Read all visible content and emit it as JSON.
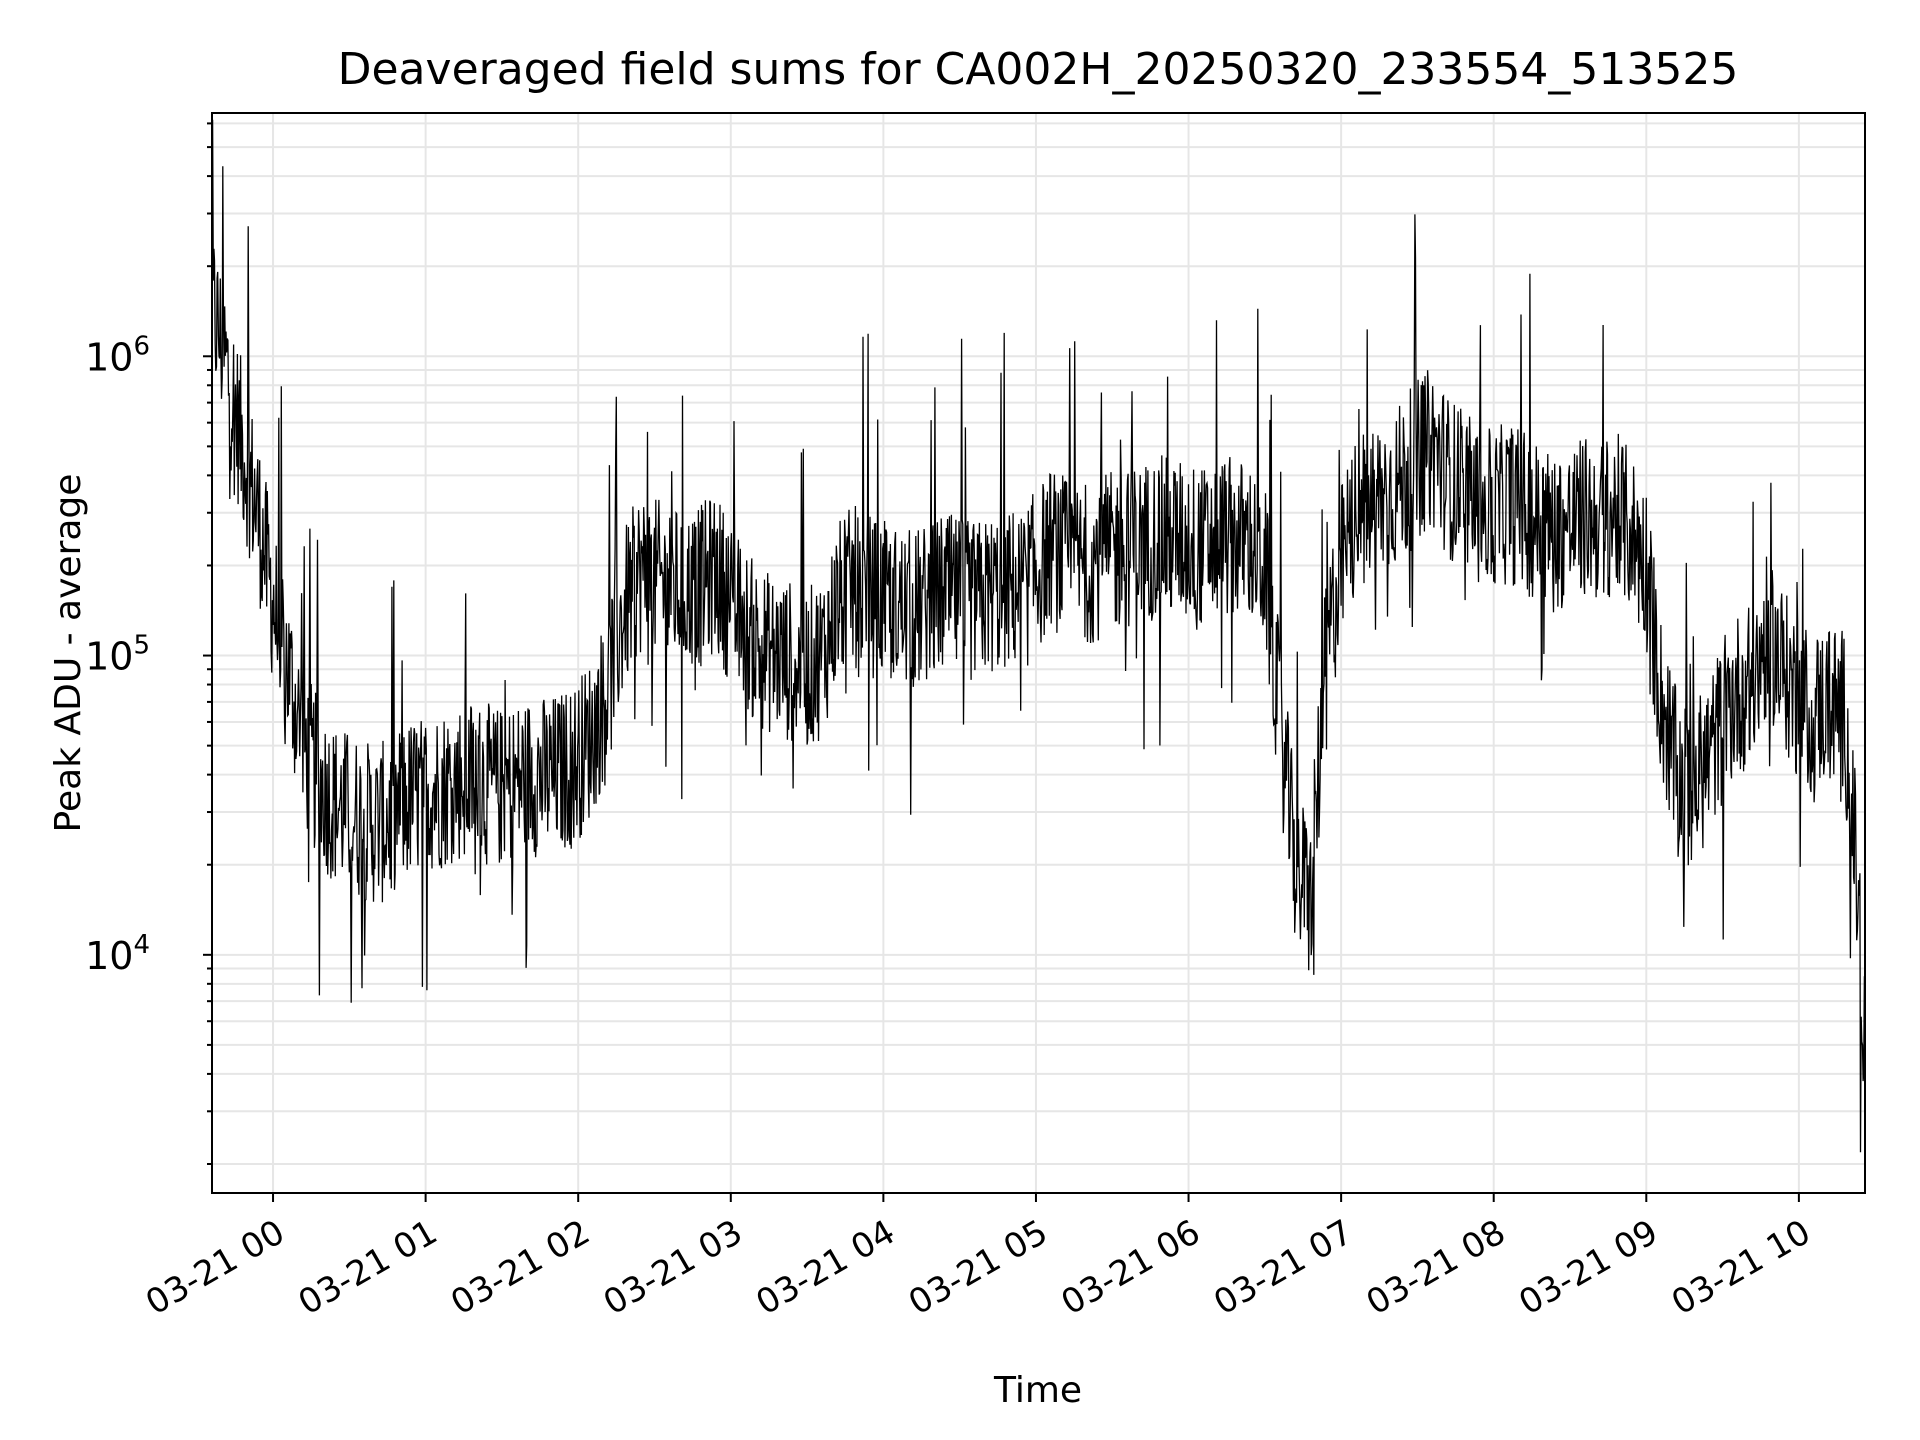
{
  "chart_data": {
    "type": "line",
    "title": "Deaveraged field sums for CA002H_20250320_233554_513525",
    "xlabel": "Time",
    "ylabel": "Peak ADU - average",
    "yscale": "log",
    "xlim": [
      "2025-03-20 23:35:54",
      "2025-03-21 10:26:00"
    ],
    "ylim": [
      1600,
      6500000
    ],
    "grid": true,
    "line_color": "#000000",
    "x_ticks": [
      "03-21 00",
      "03-21 01",
      "03-21 02",
      "03-21 03",
      "03-21 04",
      "03-21 05",
      "03-21 06",
      "03-21 07",
      "03-21 08",
      "03-21 09",
      "03-21 10"
    ],
    "y_ticks": [
      {
        "base": "10",
        "exp": "4",
        "value": 10000
      },
      {
        "base": "10",
        "exp": "5",
        "value": 100000
      },
      {
        "base": "10",
        "exp": "6",
        "value": 1000000
      }
    ],
    "series": [
      {
        "x_unit": "minutes after 03-21 00:00",
        "x": [
          -24,
          -18,
          -12,
          -6,
          0,
          6,
          12,
          18,
          24,
          30,
          36,
          42,
          48,
          54,
          60,
          66,
          72,
          78,
          84,
          90,
          96,
          102,
          108,
          114,
          120,
          126,
          132,
          138,
          144,
          150,
          156,
          162,
          168,
          174,
          180,
          186,
          192,
          198,
          204,
          210,
          216,
          222,
          228,
          234,
          240,
          246,
          252,
          258,
          264,
          270,
          276,
          282,
          288,
          294,
          300,
          306,
          312,
          318,
          324,
          330,
          336,
          342,
          348,
          354,
          360,
          366,
          372,
          378,
          384,
          390,
          396,
          402,
          408,
          414,
          420,
          426,
          432,
          438,
          444,
          450,
          456,
          462,
          468,
          474,
          480,
          486,
          492,
          498,
          504,
          510,
          516,
          522,
          528,
          534,
          540,
          546,
          552,
          558,
          564,
          570,
          576,
          582,
          588,
          594,
          600,
          606,
          612,
          618,
          624,
          626
        ],
        "values": [
          1500000,
          900000,
          500000,
          300000,
          150000,
          90000,
          50000,
          38000,
          32000,
          30000,
          28000,
          27000,
          30000,
          33000,
          35000,
          36000,
          38000,
          39000,
          37000,
          36000,
          38000,
          40000,
          39000,
          41000,
          45000,
          55000,
          80000,
          140000,
          190000,
          180000,
          170000,
          165000,
          170000,
          190000,
          150000,
          120000,
          105000,
          100000,
          95000,
          90000,
          100000,
          150000,
          170000,
          160000,
          150000,
          145000,
          140000,
          150000,
          160000,
          155000,
          150000,
          160000,
          165000,
          170000,
          190000,
          230000,
          210000,
          200000,
          210000,
          220000,
          230000,
          240000,
          250000,
          245000,
          240000,
          230000,
          250000,
          245000,
          240000,
          200000,
          60000,
          20000,
          15000,
          100000,
          200000,
          300000,
          320000,
          350000,
          380000,
          450000,
          500000,
          400000,
          350000,
          320000,
          300000,
          330000,
          300000,
          280000,
          260000,
          270000,
          290000,
          280000,
          300000,
          260000,
          200000,
          70000,
          40000,
          35000,
          45000,
          60000,
          75000,
          80000,
          120000,
          90000,
          70000,
          65000,
          70000,
          65000,
          12000,
          4000
        ]
      }
    ]
  }
}
